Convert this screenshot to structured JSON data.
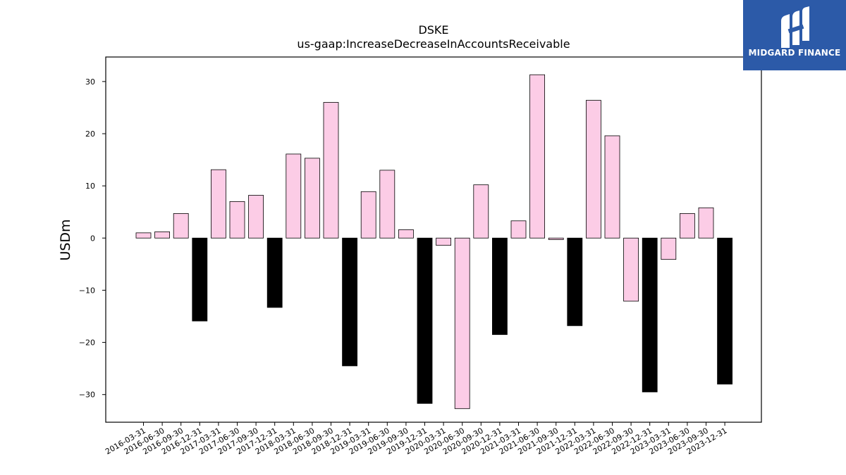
{
  "chart_data": {
    "type": "bar",
    "title": "DSKE",
    "subtitle": "us-gaap:IncreaseDecreaseInAccountsReceivable",
    "xlabel": "",
    "ylabel": "USDm",
    "ylim": [
      -35.3,
      34.7
    ],
    "yticks": [
      -30,
      -20,
      -10,
      0,
      10,
      20,
      30
    ],
    "grid": false,
    "legend": "none",
    "colors": {
      "quarter": "#fccce6",
      "year_end": "#000000",
      "edge": "#000000"
    },
    "categories": [
      "2016-03-31",
      "2016-06-30",
      "2016-09-30",
      "2016-12-31",
      "2017-03-31",
      "2017-06-30",
      "2017-09-30",
      "2017-12-31",
      "2018-03-31",
      "2018-06-30",
      "2018-09-30",
      "2018-12-31",
      "2019-03-31",
      "2019-06-30",
      "2019-09-30",
      "2019-12-31",
      "2020-03-31",
      "2020-06-30",
      "2020-09-30",
      "2020-12-31",
      "2021-03-31",
      "2021-06-30",
      "2021-09-30",
      "2021-12-31",
      "2022-03-31",
      "2022-06-30",
      "2022-09-30",
      "2022-12-31",
      "2023-03-31",
      "2023-06-30",
      "2023-09-30",
      "2023-12-31"
    ],
    "values": [
      1.0,
      1.2,
      4.7,
      -15.9,
      13.1,
      7.0,
      8.2,
      -13.3,
      16.1,
      15.3,
      26.0,
      -24.5,
      8.9,
      13.0,
      1.6,
      -31.7,
      -1.4,
      -32.7,
      10.2,
      -18.5,
      3.3,
      31.3,
      -0.3,
      -16.8,
      26.4,
      19.6,
      -12.1,
      -29.5,
      -4.1,
      4.7,
      5.8,
      -28.0
    ],
    "year_end": [
      false,
      false,
      false,
      true,
      false,
      false,
      false,
      true,
      false,
      false,
      false,
      true,
      false,
      false,
      false,
      true,
      false,
      false,
      false,
      true,
      false,
      false,
      false,
      true,
      false,
      false,
      false,
      true,
      false,
      false,
      false,
      true
    ]
  },
  "logo": {
    "text": "MIDGARD FINANCE",
    "icon": "midgard-logo-icon"
  }
}
